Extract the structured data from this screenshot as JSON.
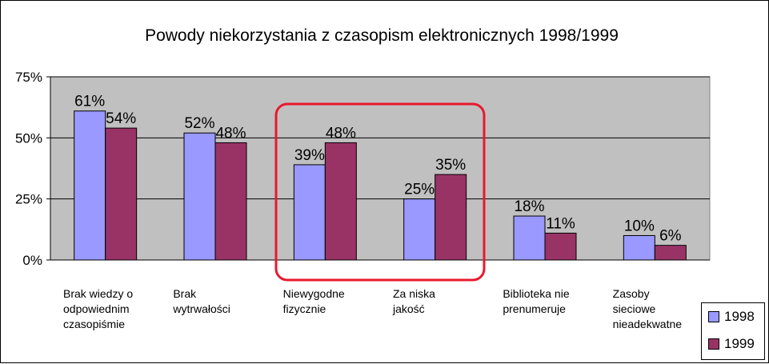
{
  "colors": {
    "plot_background": "#c0c0c0",
    "series_1998": "#9999ff",
    "series_1999": "#993366",
    "highlight": "#e8192c"
  },
  "chart_data": {
    "type": "bar",
    "title": "Powody niekorzystania z czasopism elektronicznych 1998/1999",
    "categories": [
      "Brak wiedzy o odpowiednim czasopiśmie",
      "Brak wytrwałości",
      "Niewygodne fizycznie",
      "Za niska jakość",
      "Biblioteka nie prenumeruje",
      "Zasoby sieciowe nieadekwatne"
    ],
    "category_lines": [
      [
        "Brak wiedzy o",
        "odpowiednim",
        "czasopiśmie"
      ],
      [
        "Brak",
        "wytrwałości"
      ],
      [
        "Niewygodne",
        "fizycznie"
      ],
      [
        "Za niska",
        "jakość"
      ],
      [
        "Biblioteka nie",
        "prenumeruje"
      ],
      [
        "Zasoby",
        "sieciowe",
        "nieadekwatne"
      ]
    ],
    "series": [
      {
        "name": "1998",
        "values": [
          61,
          52,
          39,
          25,
          18,
          10
        ],
        "labels": [
          "61%",
          "52%",
          "39%",
          "25%",
          "18%",
          "10%"
        ]
      },
      {
        "name": "1999",
        "values": [
          54,
          48,
          48,
          35,
          11,
          6
        ],
        "labels": [
          "54%",
          "48%",
          "48%",
          "35%",
          "11%",
          "6%"
        ]
      }
    ],
    "ylim": [
      0,
      75
    ],
    "yticks": [
      0,
      25,
      50,
      75
    ],
    "ytick_labels": [
      "0%",
      "25%",
      "50%",
      "75%"
    ],
    "grid": true,
    "legend_position": "bottom-right",
    "highlight_categories": [
      "Niewygodne fizycznie",
      "Za niska jakość"
    ]
  }
}
